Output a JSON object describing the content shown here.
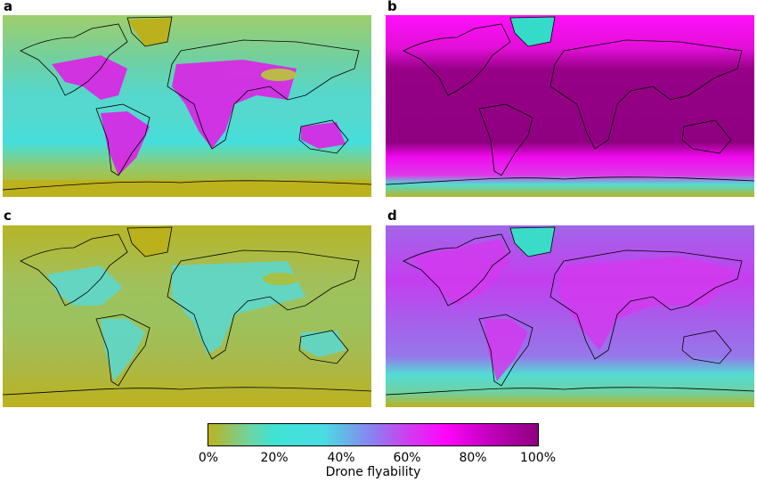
{
  "panels": [
    {
      "label": "a"
    },
    {
      "label": "b"
    },
    {
      "label": "c"
    },
    {
      "label": "d"
    }
  ],
  "colorbar": {
    "title": "Drone flyability",
    "ticks": [
      "0%",
      "20%",
      "40%",
      "60%",
      "80%",
      "100%"
    ],
    "colors": [
      "#bdb21d",
      "#3fe3d5",
      "#8c7ff0",
      "#ff05fb",
      "#8f007e"
    ]
  }
}
